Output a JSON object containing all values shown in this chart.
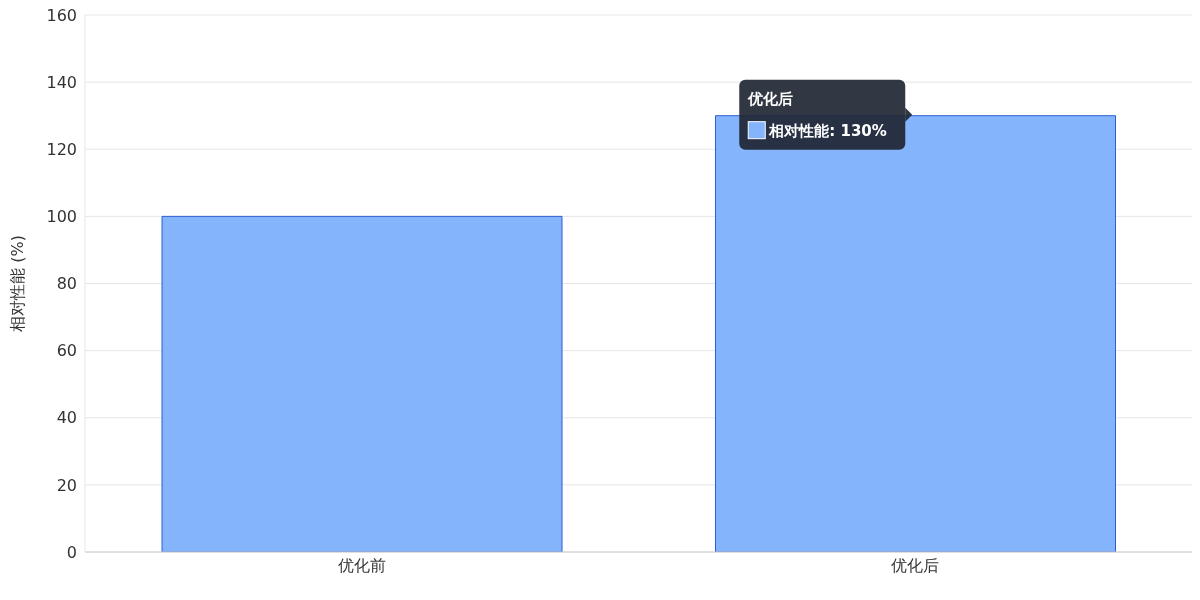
{
  "chart_data": {
    "type": "bar",
    "ylabel": "相对性能 (%)",
    "categories": [
      "优化前",
      "优化后"
    ],
    "values": [
      100,
      130
    ],
    "color": "#84b4fc",
    "ylim": [
      0,
      160
    ],
    "yticks": [
      0,
      20,
      40,
      60,
      80,
      100,
      120,
      140,
      160
    ],
    "grid": "y",
    "annotations": [
      "优化后",
      {
        "text": "相对性能: 130%",
        "x": "优化后",
        "y": 130
      }
    ]
  }
}
